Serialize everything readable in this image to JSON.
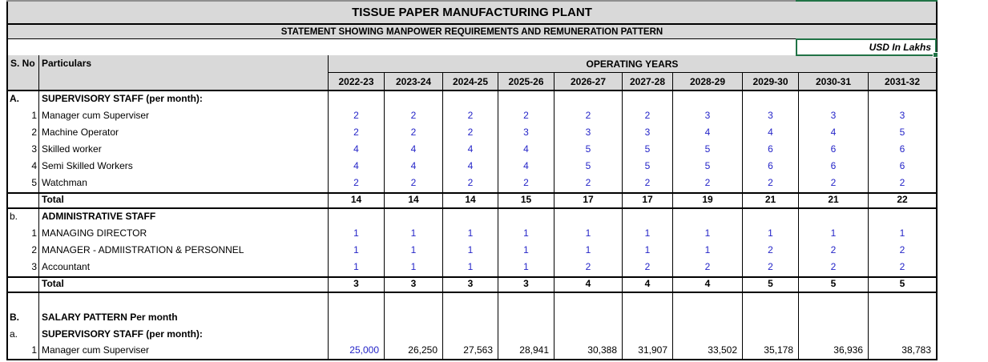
{
  "header": {
    "title": "TISSUE PAPER MANUFACTURING PLANT",
    "subtitle": "STATEMENT SHOWING MANPOWER REQUIREMENTS AND REMUNERATION PATTERN",
    "units_label": "USD In Lakhs"
  },
  "table": {
    "sno_header": "S. No",
    "particulars_header": "Particulars",
    "operating_years_header": "OPERATING YEARS",
    "years": [
      "2022-23",
      "2023-24",
      "2024-25",
      "2025-26",
      "2026-27",
      "2027-28",
      "2028-29",
      "2029-30",
      "2030-31",
      "2031-32"
    ],
    "rows": [
      {
        "sno": "A.",
        "label": "SUPERVISORY STAFF (per month):",
        "bold": true,
        "values": []
      },
      {
        "sno": "1",
        "label": "Manager cum Superviser",
        "values": [
          "2",
          "2",
          "2",
          "2",
          "2",
          "2",
          "3",
          "3",
          "3",
          "3"
        ],
        "value_color": "blue",
        "value_align": "center"
      },
      {
        "sno": "2",
        "label": "Machine Operator",
        "values": [
          "2",
          "2",
          "2",
          "3",
          "3",
          "3",
          "4",
          "4",
          "4",
          "5"
        ],
        "value_color": "blue",
        "value_align": "center"
      },
      {
        "sno": "3",
        "label": "Skilled worker",
        "values": [
          "4",
          "4",
          "4",
          "4",
          "5",
          "5",
          "5",
          "6",
          "6",
          "6"
        ],
        "value_color": "blue",
        "value_align": "center"
      },
      {
        "sno": "4",
        "label": "Semi Skilled Workers",
        "values": [
          "4",
          "4",
          "4",
          "4",
          "5",
          "5",
          "5",
          "6",
          "6",
          "6"
        ],
        "value_color": "blue",
        "value_align": "center"
      },
      {
        "sno": "5",
        "label": "Watchman",
        "values": [
          "2",
          "2",
          "2",
          "2",
          "2",
          "2",
          "2",
          "2",
          "2",
          "2"
        ],
        "value_color": "blue",
        "value_align": "center"
      },
      {
        "sno": "",
        "label": "Total",
        "bold": true,
        "total": true,
        "values": [
          "14",
          "14",
          "14",
          "15",
          "17",
          "17",
          "19",
          "21",
          "21",
          "22"
        ],
        "value_color": "black",
        "value_align": "center"
      },
      {
        "sno": "b.",
        "label": "ADMINISTRATIVE STAFF",
        "bold": true,
        "values": []
      },
      {
        "sno": "1",
        "label": "MANAGING DIRECTOR",
        "values": [
          "1",
          "1",
          "1",
          "1",
          "1",
          "1",
          "1",
          "1",
          "1",
          "1"
        ],
        "value_color": "blue",
        "value_align": "center"
      },
      {
        "sno": "2",
        "label": "MANAGER - ADMIISTRATION & PERSONNEL",
        "values": [
          "1",
          "1",
          "1",
          "1",
          "1",
          "1",
          "1",
          "2",
          "2",
          "2"
        ],
        "value_color": "blue",
        "value_align": "center"
      },
      {
        "sno": "3",
        "label": "Accountant",
        "values": [
          "1",
          "1",
          "1",
          "1",
          "2",
          "2",
          "2",
          "2",
          "2",
          "2"
        ],
        "value_color": "blue",
        "value_align": "center"
      },
      {
        "sno": "",
        "label": "Total",
        "bold": true,
        "total": true,
        "values": [
          "3",
          "3",
          "3",
          "3",
          "4",
          "4",
          "4",
          "5",
          "5",
          "5"
        ],
        "value_color": "black",
        "value_align": "center"
      },
      {
        "sno": "",
        "label": "",
        "values": [],
        "blank": true
      },
      {
        "sno": "B.",
        "label": "SALARY PATTERN Per month",
        "bold": true,
        "values": []
      },
      {
        "sno": "a.",
        "label": "SUPERVISORY STAFF (per month):",
        "bold": true,
        "values": []
      },
      {
        "sno": "1",
        "label": "Manager cum Superviser",
        "last": true,
        "values": [
          "25,000",
          "26,250",
          "27,563",
          "28,941",
          "30,388",
          "31,907",
          "33,502",
          "35,178",
          "36,936",
          "38,783"
        ],
        "value_colors": [
          "blue",
          "black",
          "black",
          "black",
          "black",
          "black",
          "black",
          "black",
          "black",
          "black"
        ],
        "value_align": "right"
      }
    ]
  },
  "colors": {
    "header_fill": "#D9D9D9",
    "grid_border": "#000000",
    "value_blue": "#2424C8",
    "selection_green": "#217346"
  }
}
